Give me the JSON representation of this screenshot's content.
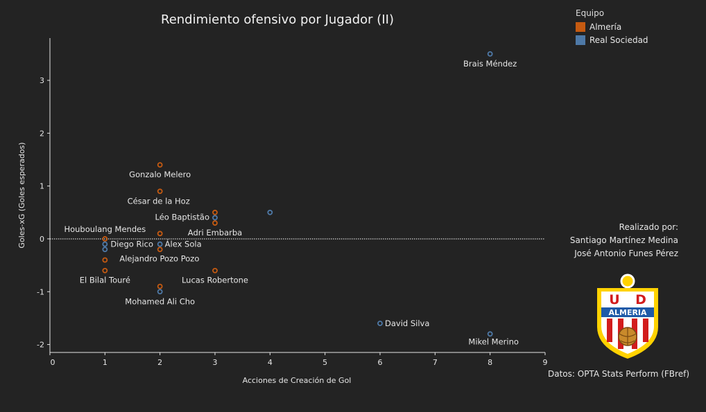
{
  "title": "Rendimiento ofensivo por Jugador (II)",
  "legend": {
    "title": "Equipo",
    "items": [
      {
        "label": "Almería",
        "color": "#c55a11"
      },
      {
        "label": "Real Sociedad",
        "color": "#4e79a7"
      }
    ]
  },
  "credit": {
    "line1": "Realizado por:",
    "line2": "Santiago Martínez Medina",
    "line3": "José Antonio Funes Pérez"
  },
  "source": "Datos: OPTA Stats Perform (FBref)",
  "logo": {
    "top_letters": "U D",
    "band_text": "ALMERIA"
  },
  "chart_data": {
    "type": "scatter",
    "xlabel": "Acciones de Creación de Gol",
    "ylabel": "Goles-xG (Goles esperados)",
    "xlim": [
      0,
      9
    ],
    "ylim": [
      -2.15,
      3.8
    ],
    "xticks": [
      0,
      1,
      2,
      3,
      4,
      5,
      6,
      7,
      8,
      9
    ],
    "yticks": [
      -2,
      -1,
      0,
      1,
      2,
      3
    ],
    "reference_line_y": 0,
    "series": [
      {
        "name": "Almería",
        "color": "#c55a11",
        "points": [
          {
            "x": 2,
            "y": 1.4,
            "label": "Gonzalo Melero"
          },
          {
            "x": 2,
            "y": 0.9,
            "label": "César de la Hoz"
          },
          {
            "x": 3,
            "y": 0.5
          },
          {
            "x": 3,
            "y": 0.3,
            "label": "Adri Embarba"
          },
          {
            "x": 2,
            "y": 0.1
          },
          {
            "x": 1,
            "y": 0.0,
            "label": "Houboulang Mendes"
          },
          {
            "x": 2,
            "y": -0.2
          },
          {
            "x": 1,
            "y": -0.4,
            "label": "Alejandro Pozo Pozo"
          },
          {
            "x": 1,
            "y": -0.6,
            "label": "El Bilal Touré"
          },
          {
            "x": 3,
            "y": -0.6,
            "label": "Lucas Robertone"
          },
          {
            "x": 2,
            "y": -0.9
          }
        ]
      },
      {
        "name": "Real Sociedad",
        "color": "#4e79a7",
        "points": [
          {
            "x": 8,
            "y": 3.5,
            "label": "Brais Méndez"
          },
          {
            "x": 4,
            "y": 0.5
          },
          {
            "x": 3,
            "y": 0.4,
            "label": "Léo Baptistão"
          },
          {
            "x": 1,
            "y": -0.1,
            "label": "Diego Rico"
          },
          {
            "x": 1,
            "y": -0.2
          },
          {
            "x": 2,
            "y": -0.1,
            "label": "Álex Sola"
          },
          {
            "x": 2,
            "y": -1.0,
            "label": "Mohamed Ali Cho"
          },
          {
            "x": 6,
            "y": -1.6,
            "label": "David Silva"
          },
          {
            "x": 8,
            "y": -1.8,
            "label": "Mikel Merino"
          }
        ]
      }
    ]
  }
}
